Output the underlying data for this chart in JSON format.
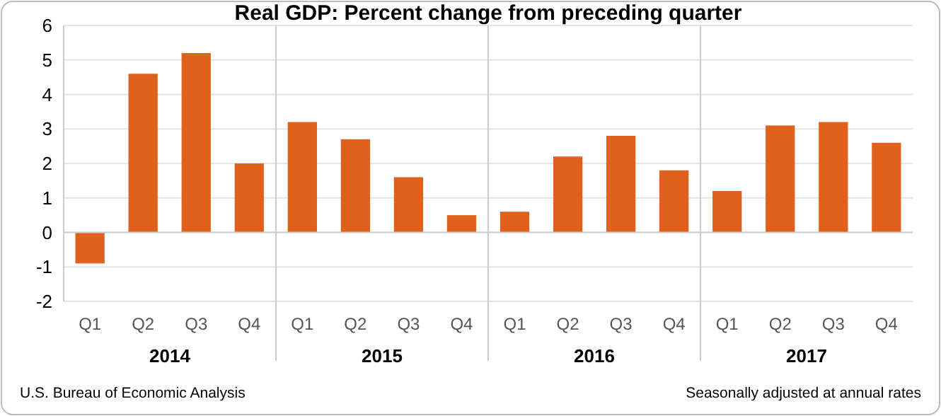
{
  "chart_data": {
    "type": "bar",
    "title": "Real GDP:  Percent change from preceding quarter",
    "categories": [
      "Q1",
      "Q2",
      "Q3",
      "Q4",
      "Q1",
      "Q2",
      "Q3",
      "Q4",
      "Q1",
      "Q2",
      "Q3",
      "Q4",
      "Q1",
      "Q2",
      "Q3",
      "Q4"
    ],
    "values": [
      -0.9,
      4.6,
      5.2,
      2.0,
      3.2,
      2.7,
      1.6,
      0.5,
      0.6,
      2.2,
      2.8,
      1.8,
      1.2,
      3.1,
      3.2,
      2.6
    ],
    "color": "#e0611c",
    "ylim": [
      -2,
      6
    ],
    "yticks": [
      -2,
      -1,
      0,
      1,
      2,
      3,
      4,
      5,
      6
    ],
    "grid": "y",
    "annotations": [
      "2014",
      "2015",
      "2016",
      "2017",
      "U.S. Bureau of Economic Analysis",
      "Seasonally adjusted at annual rates"
    ]
  }
}
